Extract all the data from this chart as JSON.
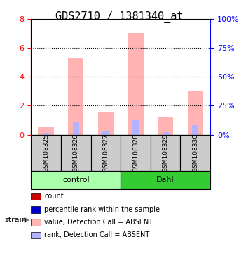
{
  "title": "GDS2710 / 1381340_at",
  "samples": [
    "GSM108325",
    "GSM108326",
    "GSM108327",
    "GSM108328",
    "GSM108329",
    "GSM108330"
  ],
  "groups": [
    "control",
    "control",
    "control",
    "Dahl",
    "Dahl",
    "Dahl"
  ],
  "value_absent": [
    0.5,
    5.3,
    1.6,
    7.0,
    1.2,
    3.0
  ],
  "rank_absent": [
    0.15,
    0.85,
    0.28,
    1.05,
    0.18,
    0.65
  ],
  "count_present": [
    0.0,
    0.0,
    0.0,
    0.0,
    0.0,
    0.0
  ],
  "rank_present": [
    0.0,
    0.0,
    0.0,
    0.0,
    0.0,
    0.0
  ],
  "ylim_left": [
    0,
    8
  ],
  "ylim_right": [
    0,
    100
  ],
  "yticks_left": [
    0,
    2,
    4,
    6,
    8
  ],
  "yticks_right": [
    0,
    25,
    50,
    75,
    100
  ],
  "ytick_labels_right": [
    "0%",
    "25%",
    "50%",
    "75%",
    "100%"
  ],
  "color_value_absent": "#ffb3b3",
  "color_rank_absent": "#b3b3ff",
  "color_count": "#cc0000",
  "color_rank": "#0000cc",
  "bar_width": 0.35,
  "bg_plot": "#ffffff",
  "bg_sample": "#cccccc",
  "color_control": "#aaffaa",
  "color_dahl": "#33cc33",
  "group_label_fontsize": 8,
  "sample_fontsize": 7,
  "title_fontsize": 11,
  "legend_items": [
    "count",
    "percentile rank within the sample",
    "value, Detection Call = ABSENT",
    "rank, Detection Call = ABSENT"
  ],
  "legend_colors": [
    "#cc0000",
    "#0000cc",
    "#ffb3b3",
    "#b3b3ff"
  ]
}
